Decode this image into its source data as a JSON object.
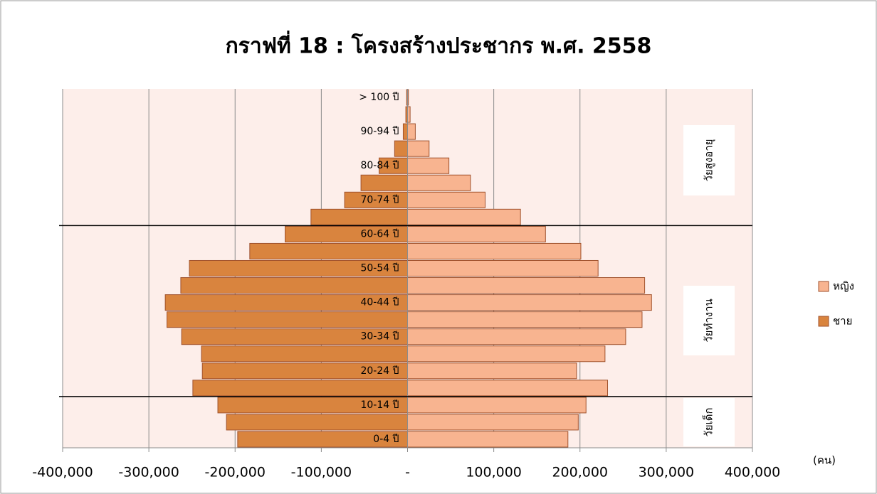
{
  "chart_data": {
    "type": "bar",
    "orientation": "horizontal",
    "stacked": true,
    "title": "กราฟที่ 18 : โครงสร้างประชากร พ.ศ. 2558",
    "x_unit": "(คน)",
    "categories": [
      "0-4 ปี",
      null,
      "10-14 ปี",
      null,
      "20-24 ปี",
      null,
      "30-34 ปี",
      null,
      "40-44 ปี",
      null,
      "50-54 ปี",
      null,
      "60-64 ปี",
      null,
      "70-74 ปี",
      null,
      "80-84 ปี",
      null,
      "90-94 ปี",
      null,
      "> 100 ปี"
    ],
    "series": [
      {
        "name": "หญิง",
        "color": "#f8b490",
        "values": [
          186000,
          198000,
          207000,
          232000,
          196000,
          229000,
          253000,
          272000,
          283000,
          275000,
          221000,
          201000,
          160000,
          131000,
          90000,
          73000,
          48000,
          25000,
          9000,
          3000,
          1000
        ]
      },
      {
        "name": "ชาย",
        "color": "#d9843e",
        "values": [
          -197000,
          -210000,
          -220000,
          -249000,
          -238000,
          -239000,
          -262000,
          -279000,
          -281000,
          -263000,
          -253000,
          -183000,
          -142000,
          -112000,
          -73000,
          -54000,
          -33000,
          -15000,
          -5000,
          -2000,
          -1000
        ]
      }
    ],
    "xlim": [
      -400000,
      400000
    ],
    "xticks": [
      {
        "value": -400000,
        "label": "-400,000"
      },
      {
        "value": -300000,
        "label": "-300,000"
      },
      {
        "value": -200000,
        "label": "-200,000"
      },
      {
        "value": -100000,
        "label": "-100,000"
      },
      {
        "value": 0,
        "label": "-"
      },
      {
        "value": 100000,
        "label": "100,000"
      },
      {
        "value": 200000,
        "label": "200,000"
      },
      {
        "value": 300000,
        "label": "300,000"
      },
      {
        "value": 400000,
        "label": "400,000"
      }
    ],
    "grid": true,
    "legend": "right",
    "annotations": [
      "วัยเด็ก",
      "วัยทำงาน",
      "วัยสูงอายุ"
    ]
  }
}
